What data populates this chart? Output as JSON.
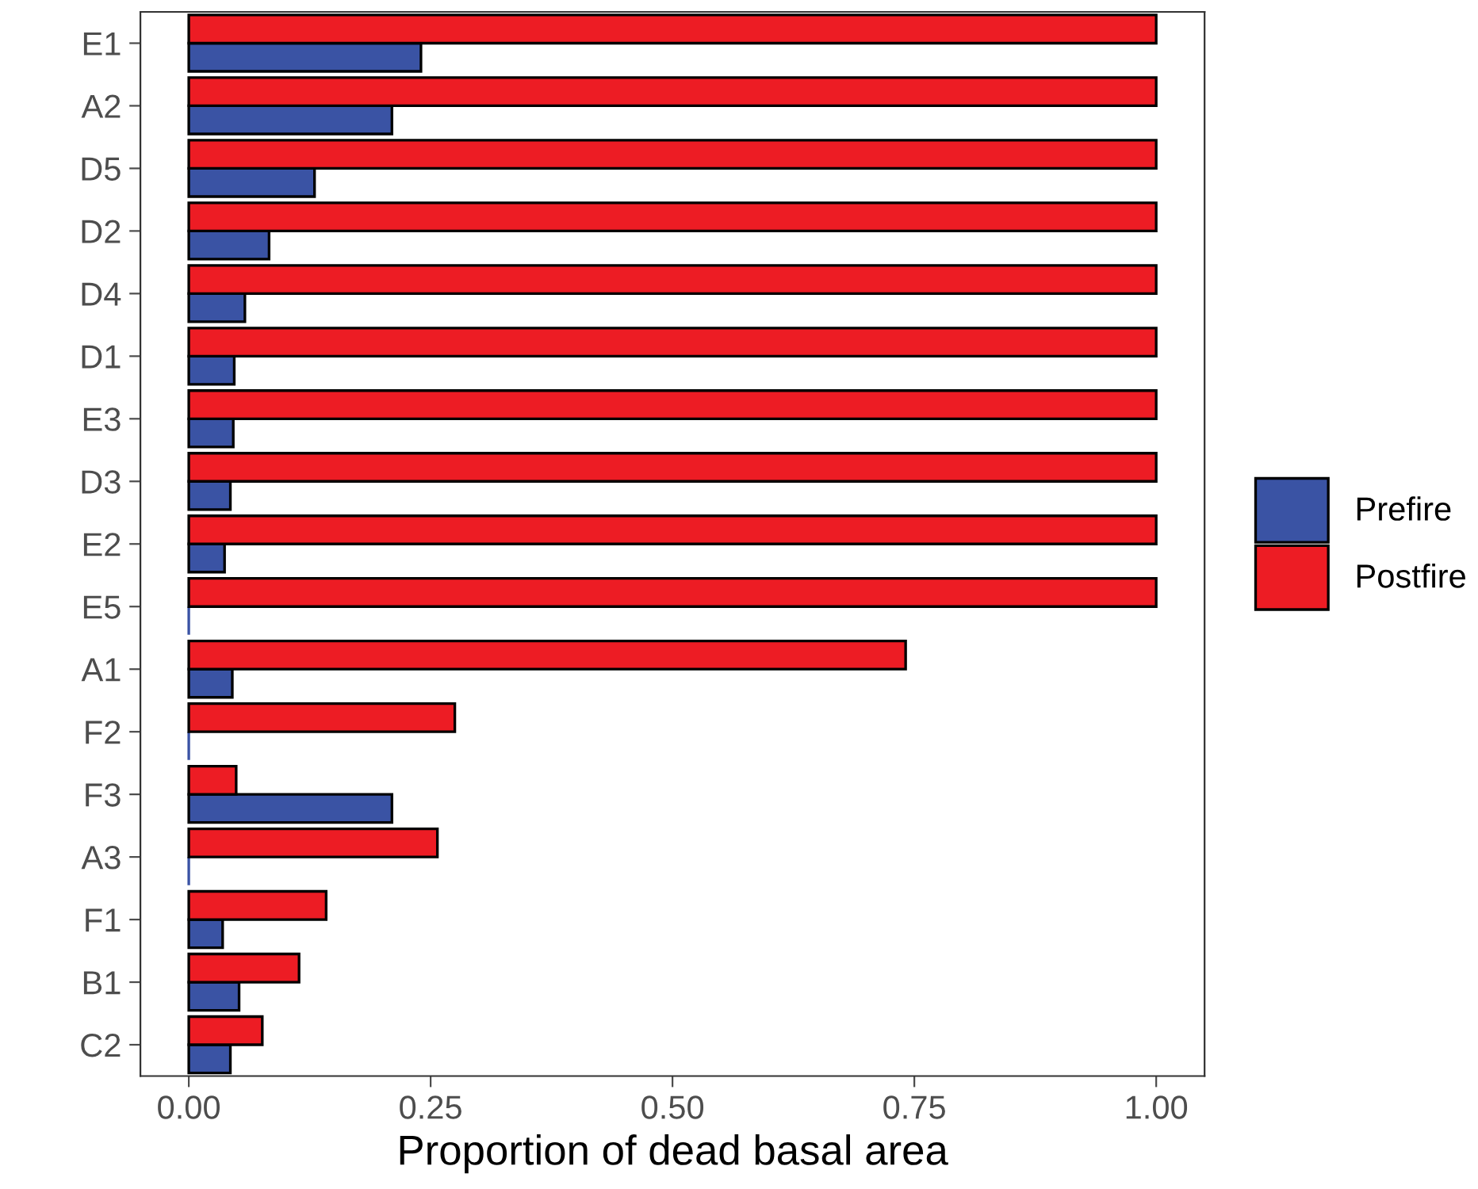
{
  "chart_data": {
    "type": "bar",
    "orientation": "horizontal",
    "xlabel": "Proportion of dead basal area",
    "categories": [
      "E1",
      "A2",
      "D5",
      "D2",
      "D4",
      "D1",
      "E3",
      "D3",
      "E2",
      "E5",
      "A1",
      "F2",
      "F3",
      "A3",
      "F1",
      "B1",
      "C2"
    ],
    "series": [
      {
        "name": "Prefire",
        "color": "#3a53a4",
        "values": [
          0.24,
          0.21,
          0.13,
          0.083,
          0.058,
          0.047,
          0.046,
          0.043,
          0.037,
          0,
          0.045,
          0,
          0.21,
          0,
          0.035,
          0.052,
          0.043
        ]
      },
      {
        "name": "Postfire",
        "color": "#ed1c24",
        "values": [
          1.0,
          1.0,
          1.0,
          1.0,
          1.0,
          1.0,
          1.0,
          1.0,
          1.0,
          1.0,
          0.741,
          0.275,
          0.049,
          0.257,
          0.142,
          0.114,
          0.076
        ]
      }
    ],
    "xlim": [
      -0.05,
      1.05
    ],
    "xticks": [
      {
        "value": 0,
        "label": "0.00"
      },
      {
        "value": 0.25,
        "label": "0.25"
      },
      {
        "value": 0.5,
        "label": "0.50"
      },
      {
        "value": 0.75,
        "label": "0.75"
      },
      {
        "value": 1,
        "label": "1.00"
      }
    ],
    "grid": false,
    "legend": "right"
  }
}
